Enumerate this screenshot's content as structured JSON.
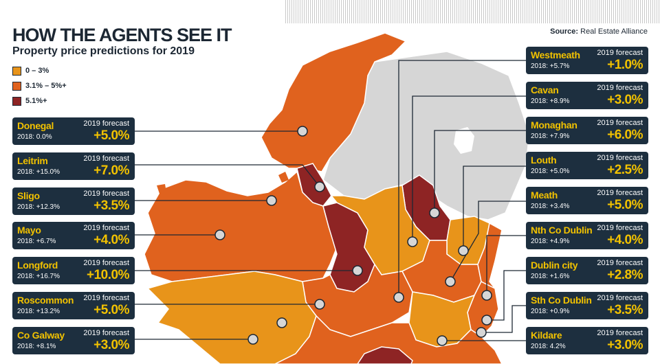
{
  "header": {
    "title": "HOW THE AGENTS SEE IT",
    "subtitle": "Property price predictions for 2019",
    "source_label": "Source:",
    "source_name": "Real Estate Alliance"
  },
  "legend": [
    {
      "label": "0 – 3%",
      "color": "#e8941a"
    },
    {
      "label": "3.1% – 5%+",
      "color": "#e0621e"
    },
    {
      "label": "5.1%+",
      "color": "#8e2424"
    }
  ],
  "colors": {
    "low": "#e8941a",
    "mid": "#e0621e",
    "high": "#8e2424",
    "northern_ireland": "#d6d6d6",
    "card_bg": "#1d2f3f",
    "card_accent": "#f2c200"
  },
  "forecast_label": "2019 forecast",
  "left_cards": [
    {
      "name": "Donegal",
      "prev": "2018: 0.0%",
      "forecast": "+5.0%"
    },
    {
      "name": "Leitrim",
      "prev": "2018: +15.0%",
      "forecast": "+7.0%"
    },
    {
      "name": "Sligo",
      "prev": "2018: +12.3%",
      "forecast": "+3.5%"
    },
    {
      "name": "Mayo",
      "prev": "2018: +6.7%",
      "forecast": "+4.0%"
    },
    {
      "name": "Longford",
      "prev": "2018: +16.7%",
      "forecast": "+10.0%"
    },
    {
      "name": "Roscommon",
      "prev": "2018: +13.2%",
      "forecast": "+5.0%"
    },
    {
      "name": "Co Galway",
      "prev": "2018: +8.1%",
      "forecast": "+3.0%"
    }
  ],
  "right_cards": [
    {
      "name": "Westmeath",
      "prev": "2018: +5.7%",
      "forecast": "+1.0%"
    },
    {
      "name": "Cavan",
      "prev": "2018: +8.9%",
      "forecast": "+3.0%"
    },
    {
      "name": "Monaghan",
      "prev": "2018: +7.9%",
      "forecast": "+6.0%"
    },
    {
      "name": "Louth",
      "prev": "2018: +5.0%",
      "forecast": "+2.5%"
    },
    {
      "name": "Meath",
      "prev": "2018: +3.4%",
      "forecast": "+5.0%"
    },
    {
      "name": "Nth Co Dublin",
      "prev": "2018: +4.9%",
      "forecast": "+4.0%"
    },
    {
      "name": "Dublin city",
      "prev": "2018: +1.6%",
      "forecast": "+2.8%"
    },
    {
      "name": "Sth Co Dublin",
      "prev": "2018: +0.9%",
      "forecast": "+3.5%"
    },
    {
      "name": "Kildare",
      "prev": "2018: 4.2%",
      "forecast": "+3.0%"
    }
  ]
}
